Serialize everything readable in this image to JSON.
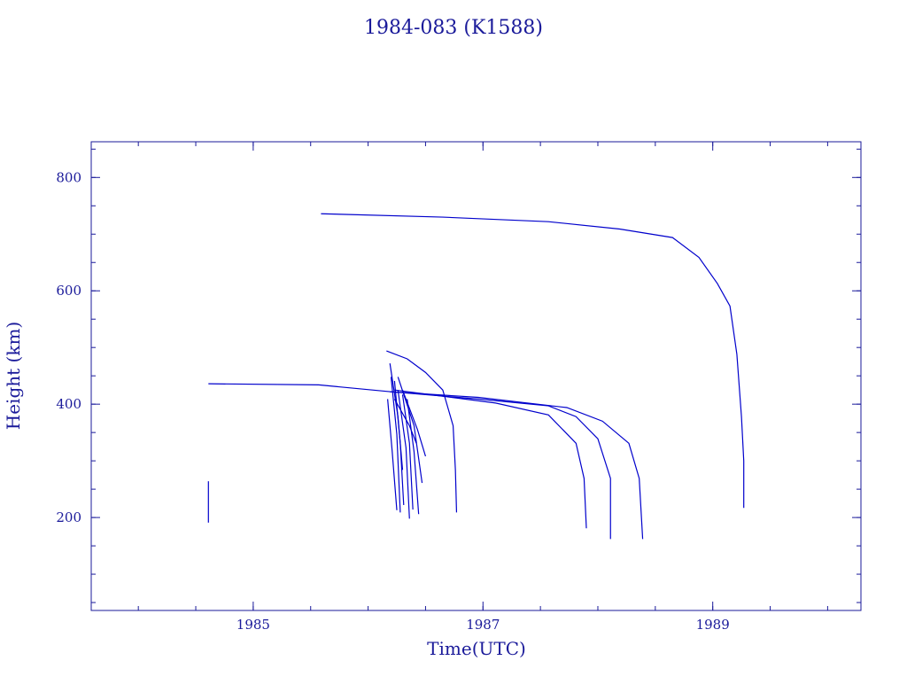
{
  "chart_data": {
    "type": "line",
    "title": "1984-083 (K1588)",
    "x_label": "Time(UTC)",
    "y_label": "Height (km)",
    "color": "#0000cc",
    "xlim": [
      1983.59,
      1990.29
    ],
    "ylim": [
      36,
      863
    ],
    "xticks": [
      1985,
      1987,
      1989
    ],
    "yticks": [
      200,
      400,
      600,
      800
    ],
    "xticks_minor": [
      1983.5,
      1984,
      1984.5,
      1985,
      1985.5,
      1986,
      1986.5,
      1987,
      1987.5,
      1988,
      1988.5,
      1989,
      1989.5,
      1990
    ],
    "yticks_minor": [
      50,
      100,
      150,
      200,
      250,
      300,
      350,
      400,
      450,
      500,
      550,
      600,
      650,
      700,
      750,
      800,
      850
    ],
    "series": [
      {
        "x": [
          1985.59,
          1986.65,
          1987.57,
          1988.19,
          1988.65,
          1988.88,
          1989.04,
          1989.15,
          1989.21,
          1989.25,
          1989.27,
          1989.27
        ],
        "values": [
          736,
          730,
          722,
          709,
          694,
          659,
          613,
          573,
          488,
          378,
          300,
          217
        ]
      },
      {
        "x": [
          1984.61,
          1985.57,
          1986.19,
          1986.96,
          1987.57,
          1987.81,
          1988.0,
          1988.11,
          1988.11
        ],
        "values": [
          436,
          434,
          422,
          409,
          397,
          378,
          339,
          269,
          162
        ]
      },
      {
        "x": [
          1986.19,
          1986.96,
          1987.73,
          1988.04,
          1988.27,
          1988.36,
          1988.39
        ],
        "values": [
          422,
          412,
          394,
          370,
          331,
          269,
          162
        ]
      },
      {
        "x": [
          1986.23,
          1987.11,
          1987.57,
          1987.81,
          1987.88,
          1987.9
        ],
        "values": [
          425,
          402,
          381,
          331,
          269,
          181
        ]
      },
      {
        "x": [
          1984.61,
          1984.61
        ],
        "values": [
          264,
          191
        ]
      },
      {
        "x": [
          1986.16,
          1986.34,
          1986.5,
          1986.65,
          1986.74,
          1986.76,
          1986.77
        ],
        "values": [
          494,
          480,
          456,
          425,
          362,
          284,
          209
        ]
      },
      {
        "x": [
          1986.17,
          1986.21,
          1986.25
        ],
        "values": [
          409,
          316,
          213
        ]
      },
      {
        "x": [
          1986.2,
          1986.25,
          1986.28
        ],
        "values": [
          448,
          347,
          209
        ]
      },
      {
        "x": [
          1986.23,
          1986.28,
          1986.31
        ],
        "values": [
          441,
          331,
          222
        ]
      },
      {
        "x": [
          1986.26,
          1986.33,
          1986.36
        ],
        "values": [
          425,
          323,
          198
        ]
      },
      {
        "x": [
          1986.3,
          1986.36,
          1986.39
        ],
        "values": [
          417,
          331,
          214
        ]
      },
      {
        "x": [
          1986.34,
          1986.4,
          1986.44
        ],
        "values": [
          409,
          316,
          206
        ]
      },
      {
        "x": [
          1986.26,
          1986.4,
          1986.47
        ],
        "values": [
          448,
          362,
          261
        ]
      },
      {
        "x": [
          1986.3,
          1986.43,
          1986.5
        ],
        "values": [
          425,
          355,
          308
        ]
      },
      {
        "x": [
          1986.19,
          1986.26,
          1986.3
        ],
        "values": [
          472,
          378,
          284
        ]
      },
      {
        "x": [
          1986.23,
          1986.36,
          1986.42
        ],
        "values": [
          409,
          362,
          331
        ]
      }
    ]
  }
}
